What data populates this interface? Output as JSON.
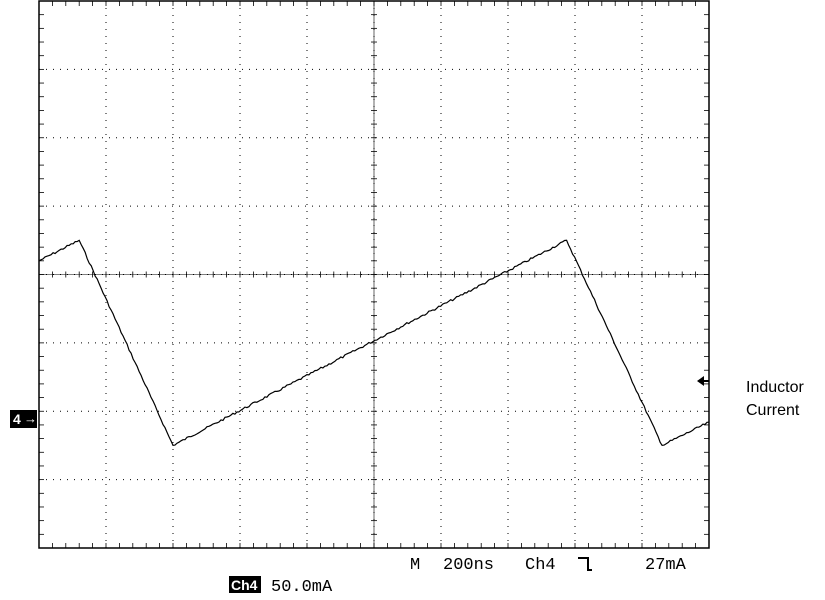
{
  "chart_data": {
    "type": "line",
    "title": "",
    "xlabel": "",
    "ylabel": "",
    "grid": true,
    "xlim": [
      0,
      2000
    ],
    "x_unit": "ns",
    "y_unit": "mA",
    "ylim": [
      -75,
      325
    ],
    "series": [
      {
        "name": "Inductor Current",
        "x": [
          0,
          120,
          400,
          1575,
          1860,
          2000
        ],
        "y": [
          135,
          150,
          0,
          150,
          0,
          17
        ]
      }
    ],
    "annotations": [
      {
        "text": "Inductor",
        "anchor": "right"
      },
      {
        "text": "Current",
        "anchor": "right"
      }
    ]
  },
  "readout": {
    "timebase_prefix": "M",
    "timebase": "200ns",
    "trigger_source": "Ch4",
    "trigger_slope_symbol": "⹮",
    "trigger_level": "27mA",
    "channel_label": "Ch4",
    "channel_scale": "50.0mA",
    "ground_marker": "4",
    "trace_color": "#000000",
    "grid_color": "#000000",
    "background": "#ffffff"
  }
}
